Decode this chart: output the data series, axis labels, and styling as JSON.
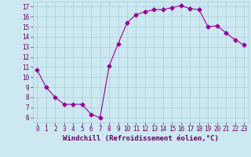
{
  "x": [
    0,
    1,
    2,
    3,
    4,
    5,
    6,
    7,
    8,
    9,
    10,
    11,
    12,
    13,
    14,
    15,
    16,
    17,
    18,
    19,
    20,
    21,
    22,
    23
  ],
  "y": [
    10.7,
    9.0,
    8.0,
    7.3,
    7.3,
    7.3,
    6.3,
    6.0,
    11.1,
    13.3,
    15.4,
    16.2,
    16.5,
    16.7,
    16.7,
    16.9,
    17.1,
    16.8,
    16.7,
    15.0,
    15.1,
    14.4,
    13.7,
    13.2
  ],
  "line_color": "#990099",
  "marker": "D",
  "marker_size": 2.5,
  "bg_color": "#cce8f0",
  "grid_color": "#aacfdf",
  "xlabel": "Windchill (Refroidissement éolien,°C)",
  "xlim": [
    -0.5,
    23.5
  ],
  "ylim": [
    5.5,
    17.5
  ],
  "yticks": [
    6,
    7,
    8,
    9,
    10,
    11,
    12,
    13,
    14,
    15,
    16,
    17
  ],
  "xticks": [
    0,
    1,
    2,
    3,
    4,
    5,
    6,
    7,
    8,
    9,
    10,
    11,
    12,
    13,
    14,
    15,
    16,
    17,
    18,
    19,
    20,
    21,
    22,
    23
  ],
  "tick_color": "#660066",
  "label_fontsize": 6.5,
  "tick_fontsize": 5.5
}
